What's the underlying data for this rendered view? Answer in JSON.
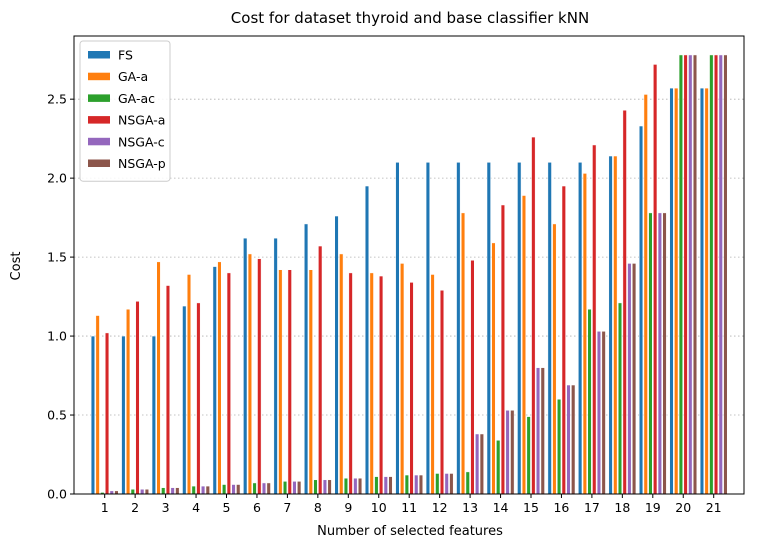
{
  "chart_data": {
    "type": "bar",
    "title": "Cost for dataset thyroid and base classifier kNN",
    "xlabel": "Number of selected features",
    "ylabel": "Cost",
    "ylim": [
      0,
      2.9
    ],
    "yticks": [
      "0.0",
      "0.5",
      "1.0",
      "1.5",
      "2.0",
      "2.5"
    ],
    "grid": "y-dotted",
    "legend_position": "top-left",
    "categories": [
      "1",
      "2",
      "3",
      "4",
      "5",
      "6",
      "7",
      "8",
      "9",
      "10",
      "11",
      "12",
      "13",
      "14",
      "15",
      "16",
      "17",
      "18",
      "19",
      "20",
      "21"
    ],
    "series": [
      {
        "name": "FS",
        "color": "#1f77b4",
        "values": [
          1.0,
          1.0,
          1.0,
          1.19,
          1.44,
          1.62,
          1.62,
          1.71,
          1.76,
          1.95,
          2.1,
          2.1,
          2.1,
          2.1,
          2.1,
          2.1,
          2.1,
          2.14,
          2.33,
          2.57,
          2.57
        ]
      },
      {
        "name": "GA-a",
        "color": "#ff7f0e",
        "values": [
          1.13,
          1.17,
          1.47,
          1.39,
          1.47,
          1.52,
          1.42,
          1.42,
          1.52,
          1.4,
          1.46,
          1.39,
          1.78,
          1.59,
          1.89,
          1.71,
          2.03,
          2.14,
          2.53,
          2.57,
          2.57
        ]
      },
      {
        "name": "GA-ac",
        "color": "#2ca02c",
        "values": [
          0.01,
          0.03,
          0.04,
          0.05,
          0.06,
          0.07,
          0.08,
          0.09,
          0.1,
          0.11,
          0.12,
          0.13,
          0.14,
          0.34,
          0.49,
          0.6,
          1.17,
          1.21,
          1.78,
          2.78,
          2.78
        ]
      },
      {
        "name": "NSGA-a",
        "color": "#d62728",
        "values": [
          1.02,
          1.22,
          1.32,
          1.21,
          1.4,
          1.49,
          1.42,
          1.57,
          1.4,
          1.38,
          1.34,
          1.29,
          1.48,
          1.83,
          2.26,
          1.95,
          2.21,
          2.43,
          2.72,
          2.78,
          2.78
        ]
      },
      {
        "name": "NSGA-c",
        "color": "#9467bd",
        "values": [
          0.02,
          0.03,
          0.04,
          0.05,
          0.06,
          0.07,
          0.08,
          0.09,
          0.1,
          0.11,
          0.12,
          0.13,
          0.38,
          0.53,
          0.8,
          0.69,
          1.03,
          1.46,
          1.78,
          2.78,
          2.78
        ]
      },
      {
        "name": "NSGA-p",
        "color": "#8c564b",
        "values": [
          0.02,
          0.03,
          0.04,
          0.05,
          0.06,
          0.07,
          0.08,
          0.09,
          0.1,
          0.11,
          0.12,
          0.13,
          0.38,
          0.53,
          0.8,
          0.69,
          1.03,
          1.46,
          1.78,
          2.78,
          2.78
        ]
      }
    ]
  }
}
